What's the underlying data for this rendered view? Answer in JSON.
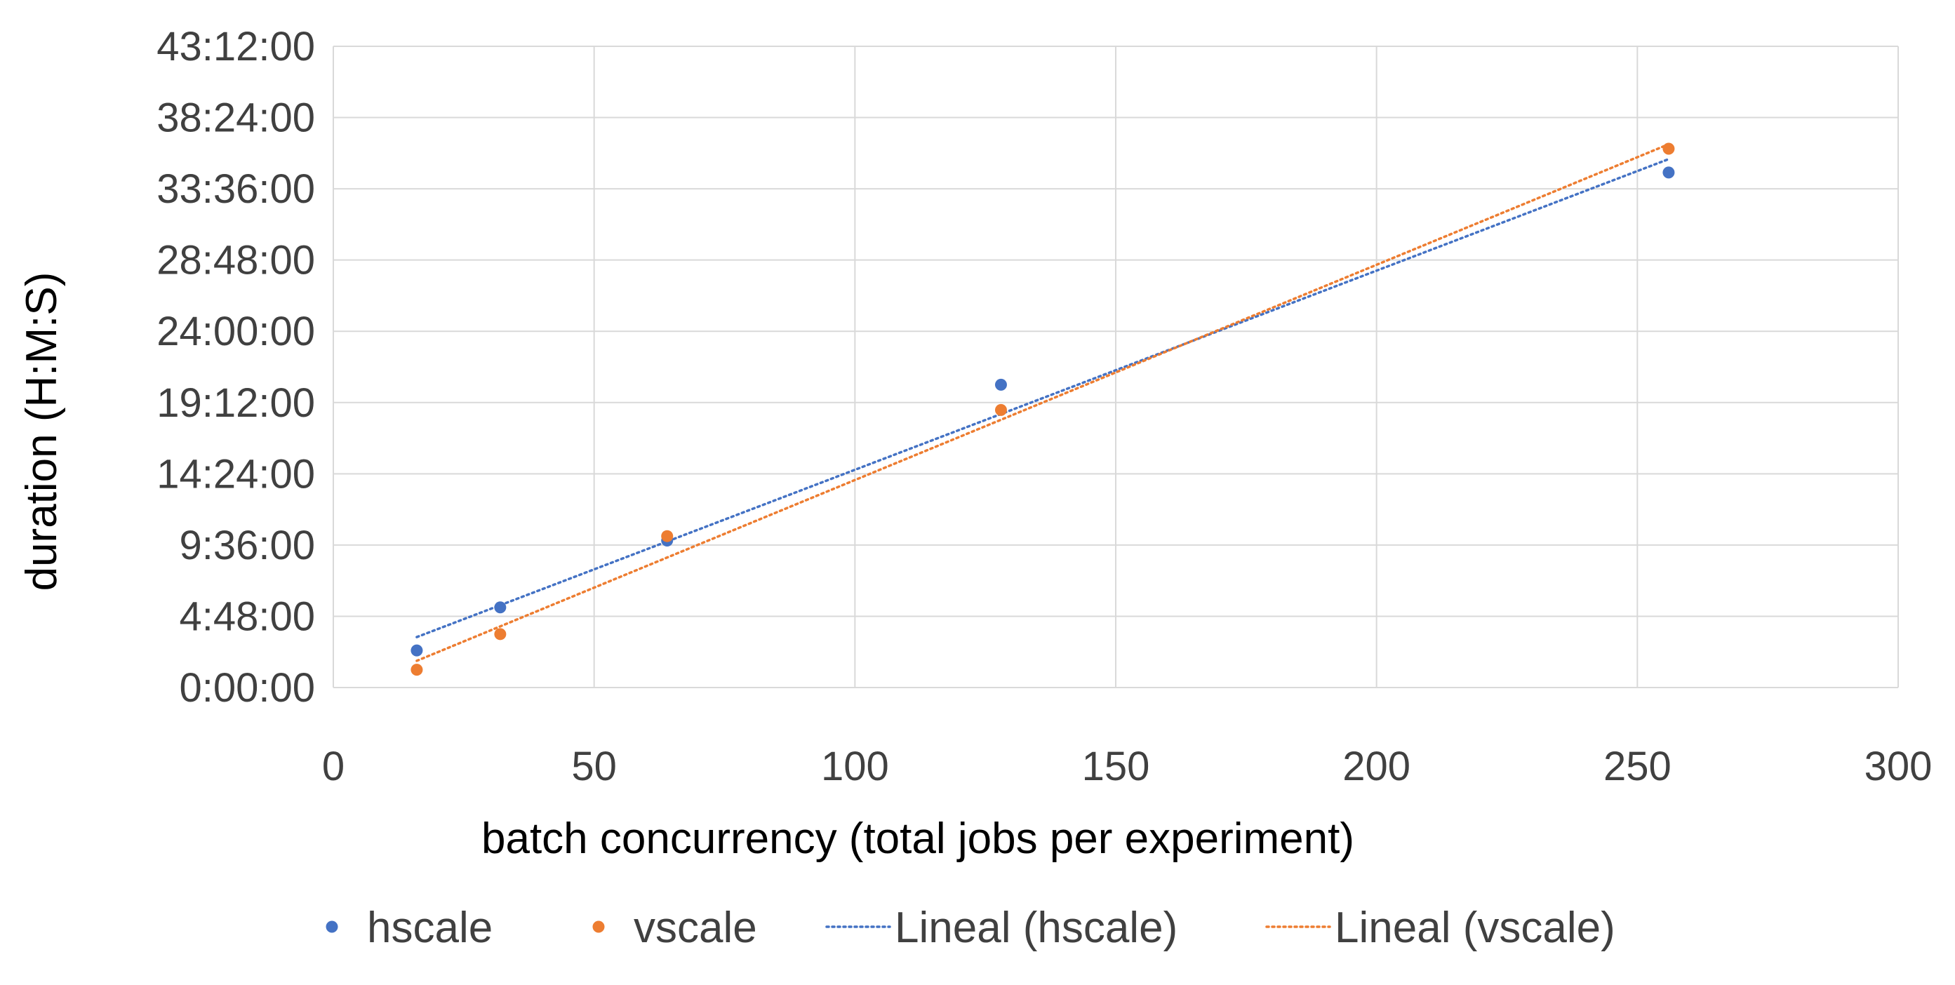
{
  "chart_data": {
    "type": "scatter",
    "xlabel": "batch concurrency (total jobs per experiment)",
    "ylabel": "duration (H:M:S)",
    "xlim": [
      0,
      300
    ],
    "ylim_hours": [
      0,
      43.2
    ],
    "x_ticks": [
      0,
      50,
      100,
      150,
      200,
      250,
      300
    ],
    "x_tick_labels": [
      "0",
      "50",
      "100",
      "150",
      "200",
      "250",
      "300"
    ],
    "y_ticks_hours": [
      0,
      4.8,
      9.6,
      14.4,
      19.2,
      24,
      28.8,
      33.6,
      38.4,
      43.2
    ],
    "y_tick_labels": [
      "0:00:00",
      "4:48:00",
      "9:36:00",
      "14:24:00",
      "19:12:00",
      "24:00:00",
      "28:48:00",
      "33:36:00",
      "38:24:00",
      "43:12:00"
    ],
    "grid": true,
    "legend_position": "bottom",
    "series": [
      {
        "name": "hscale",
        "color": "#4472c4",
        "marker": "circle",
        "x": [
          16,
          32,
          64,
          128,
          256
        ],
        "y_hours": [
          2.5,
          5.4,
          9.9,
          20.4,
          34.7
        ]
      },
      {
        "name": "vscale",
        "color": "#ed7d31",
        "marker": "circle",
        "x": [
          16,
          32,
          64,
          128,
          256
        ],
        "y_hours": [
          1.2,
          3.6,
          10.2,
          18.7,
          36.3
        ]
      }
    ],
    "trendlines": [
      {
        "name": "Lineal (hscale)",
        "color": "#4472c4",
        "style": "dotted",
        "x_range": [
          16,
          256
        ],
        "y_hours_endpoints": [
          3.4,
          35.6
        ]
      },
      {
        "name": "Lineal (vscale)",
        "color": "#ed7d31",
        "style": "dotted",
        "x_range": [
          16,
          256
        ],
        "y_hours_endpoints": [
          1.8,
          36.6
        ]
      }
    ],
    "legend": [
      "hscale",
      "vscale",
      "Lineal (hscale)",
      "Lineal (vscale)"
    ]
  }
}
